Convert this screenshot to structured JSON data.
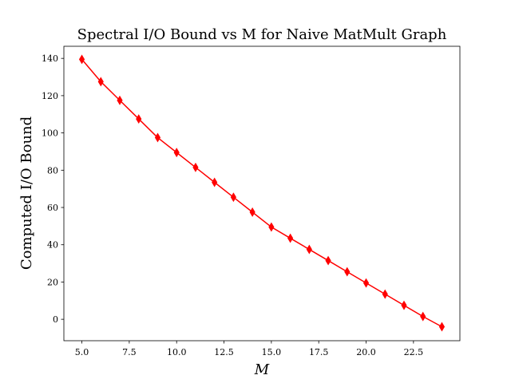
{
  "chart_data": {
    "type": "line",
    "title": "Spectral I/O Bound vs M for Naive MatMult Graph",
    "xlabel": "M",
    "ylabel": "Computed I/O Bound",
    "xlim": [
      4.05,
      24.95
    ],
    "ylim": [
      -11.5,
      146.5
    ],
    "xticks": [
      5.0,
      7.5,
      10.0,
      12.5,
      15.0,
      17.5,
      20.0,
      22.5
    ],
    "xtick_labels": [
      "5.0",
      "7.5",
      "10.0",
      "12.5",
      "15.0",
      "17.5",
      "20.0",
      "22.5"
    ],
    "yticks": [
      0,
      20,
      40,
      60,
      80,
      100,
      120,
      140
    ],
    "ytick_labels": [
      "0",
      "20",
      "40",
      "60",
      "80",
      "100",
      "120",
      "140"
    ],
    "grid": false,
    "legend": "none",
    "color": "#ff0000",
    "marker": "thin-diamond",
    "series": [
      {
        "x": [
          5,
          6,
          7,
          8,
          9,
          10,
          11,
          12,
          13,
          14,
          15,
          16,
          17,
          18,
          19,
          20,
          21,
          22,
          23,
          24
        ],
        "values": [
          139.5,
          127.5,
          117.5,
          107.5,
          97.5,
          89.5,
          81.5,
          73.5,
          65.5,
          57.5,
          49.5,
          43.5,
          37.5,
          31.5,
          25.5,
          19.5,
          13.5,
          7.5,
          1.5,
          -4.0
        ]
      }
    ]
  }
}
